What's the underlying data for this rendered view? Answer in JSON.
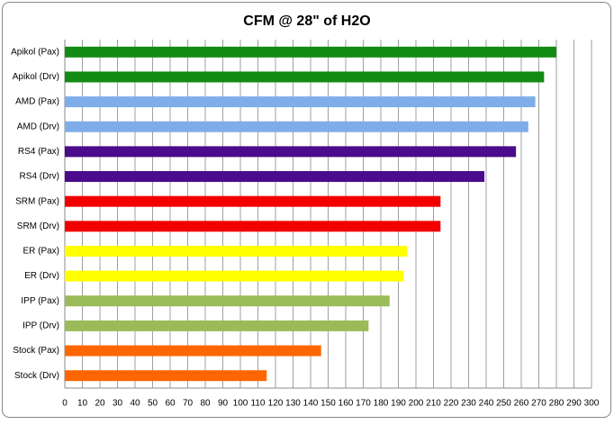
{
  "chart_data": {
    "type": "bar",
    "orientation": "horizontal",
    "title": "CFM @ 28\" of H2O",
    "categories": [
      "Apikol (Pax)",
      "Apikol (Drv)",
      "AMD (Pax)",
      "AMD (Drv)",
      "RS4 (Pax)",
      "RS4 (Drv)",
      "SRM (Pax)",
      "SRM (Drv)",
      "ER (Pax)",
      "ER (Drv)",
      "IPP (Pax)",
      "IPP (Drv)",
      "Stock (Pax)",
      "Stock (Drv)"
    ],
    "values": [
      280,
      273,
      268,
      264,
      257,
      239,
      214,
      214,
      195,
      193,
      185,
      173,
      146,
      115
    ],
    "colors": [
      "#138b13",
      "#138b13",
      "#7fadea",
      "#7fadea",
      "#4a0b8c",
      "#4a0b8c",
      "#f20000",
      "#f20000",
      "#ffff00",
      "#ffff00",
      "#9bbb59",
      "#9bbb59",
      "#ff6600",
      "#ff6600"
    ],
    "xlim": [
      0,
      300
    ],
    "xticks": [
      0,
      10,
      20,
      30,
      40,
      50,
      60,
      70,
      80,
      90,
      100,
      110,
      120,
      130,
      140,
      150,
      160,
      170,
      180,
      190,
      200,
      210,
      220,
      230,
      240,
      250,
      260,
      270,
      280,
      290,
      300
    ],
    "grid": true
  }
}
